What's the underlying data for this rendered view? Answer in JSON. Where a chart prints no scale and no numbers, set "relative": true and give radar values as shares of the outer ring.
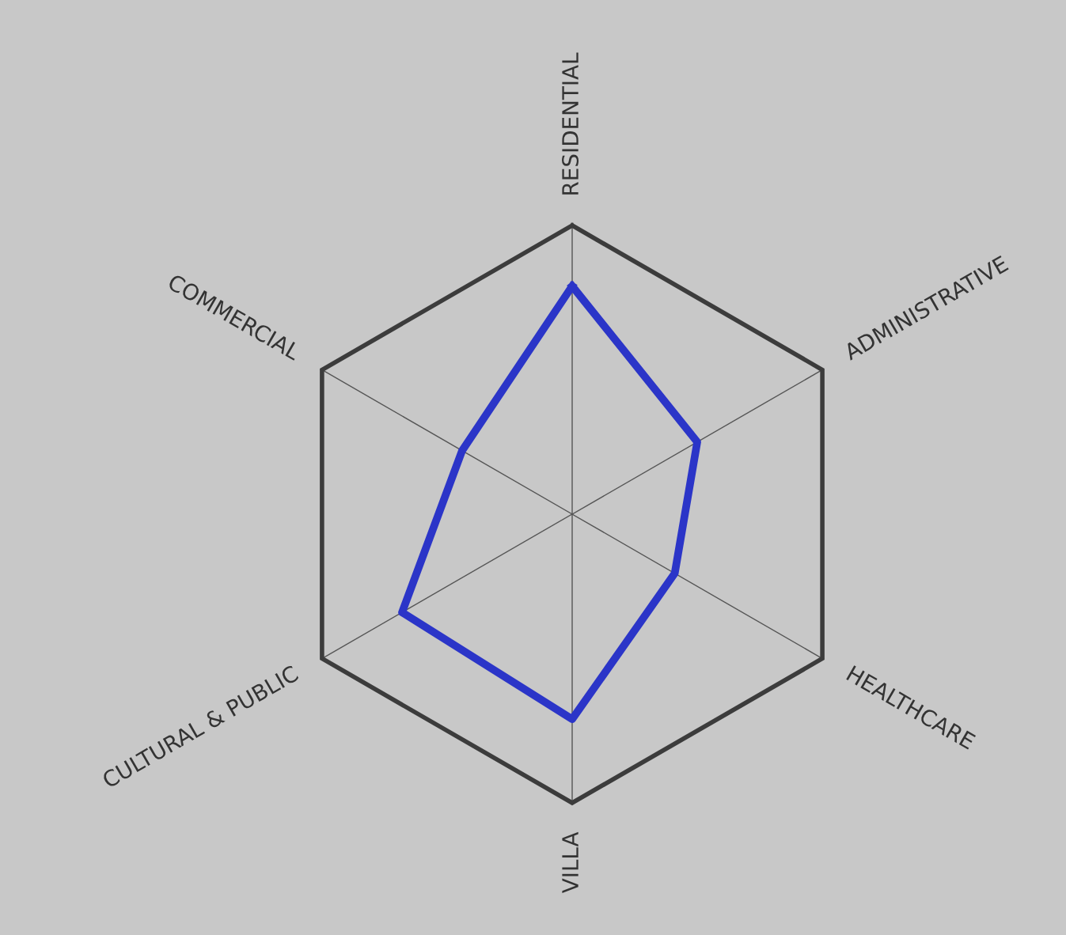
{
  "chart_data": {
    "type": "radar",
    "relative": true,
    "categories": [
      "RESIDENTIAL",
      "ADMINISTRATIVE",
      "HEALTHCARE",
      "VILLA",
      "CULTURAL & PUBLIC",
      "COMMERCIAL"
    ],
    "series": [
      {
        "color": "#2b35c8",
        "values": [
          0.79,
          0.5,
          0.41,
          0.71,
          0.68,
          0.44
        ]
      }
    ]
  }
}
